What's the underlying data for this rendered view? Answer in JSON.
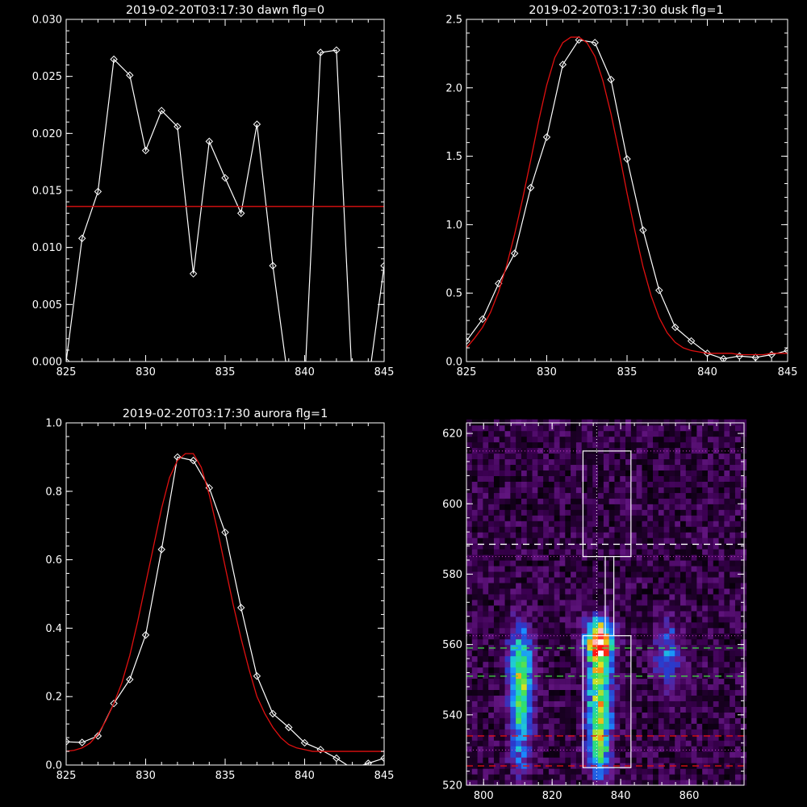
{
  "chart_data": [
    {
      "type": "line",
      "title": "2019-02-20T03:17:30 dawn flg=0",
      "xlim": [
        825,
        845
      ],
      "ylim": [
        0,
        0.03
      ],
      "x_ticks": [
        825,
        830,
        835,
        840,
        845
      ],
      "y_ticks": [
        0.0,
        0.005,
        0.01,
        0.015,
        0.02,
        0.025,
        0.03
      ],
      "x_tick_labels": [
        "825",
        "830",
        "835",
        "840",
        "845"
      ],
      "y_tick_labels": [
        "0.000",
        "0.005",
        "0.010",
        "0.015",
        "0.020",
        "0.025",
        "0.030"
      ],
      "series": [
        {
          "style": "white-line-diamonds",
          "color": "#ffffff",
          "x": [
            825,
            826,
            827,
            828,
            829,
            830,
            831,
            832,
            833,
            834,
            835,
            836,
            837,
            838,
            839,
            840,
            841,
            842,
            843,
            844,
            845
          ],
          "y": [
            0.0,
            0.0108,
            0.0149,
            0.0265,
            0.0251,
            0.0185,
            0.022,
            0.0206,
            0.0077,
            0.0193,
            0.0161,
            0.013,
            0.0208,
            0.0084,
            -0.002,
            -0.002,
            0.0271,
            0.0273,
            -0.002,
            -0.002,
            0.0084
          ]
        },
        {
          "style": "red-fit",
          "color": "#e01010",
          "x": [
            825,
            845
          ],
          "y": [
            0.0136,
            0.0136
          ]
        }
      ]
    },
    {
      "type": "line",
      "title": "2019-02-20T03:17:30 dusk flg=1",
      "xlim": [
        825,
        845
      ],
      "ylim": [
        0,
        2.5
      ],
      "x_ticks": [
        825,
        830,
        835,
        840,
        845
      ],
      "y_ticks": [
        0.0,
        0.5,
        1.0,
        1.5,
        2.0,
        2.5
      ],
      "x_tick_labels": [
        "825",
        "830",
        "835",
        "840",
        "845"
      ],
      "y_tick_labels": [
        "0.0",
        "0.5",
        "1.0",
        "1.5",
        "2.0",
        "2.5"
      ],
      "series": [
        {
          "style": "white-line-diamonds",
          "color": "#ffffff",
          "x": [
            825,
            826,
            827,
            828,
            829,
            830,
            831,
            832,
            833,
            834,
            835,
            836,
            837,
            838,
            839,
            840,
            841,
            842,
            843,
            844,
            845
          ],
          "y": [
            0.15,
            0.31,
            0.57,
            0.79,
            1.27,
            1.64,
            2.17,
            2.35,
            2.33,
            2.06,
            1.48,
            0.96,
            0.52,
            0.25,
            0.15,
            0.06,
            0.02,
            0.04,
            0.03,
            0.05,
            0.08
          ]
        },
        {
          "style": "red-fit",
          "color": "#e01010",
          "x": [
            825,
            825.5,
            826,
            826.5,
            827,
            827.5,
            828,
            828.5,
            829,
            829.5,
            830,
            830.5,
            831,
            831.5,
            832,
            832.5,
            833,
            833.5,
            834,
            834.5,
            835,
            835.5,
            836,
            836.5,
            837,
            837.5,
            838,
            838.5,
            839,
            839.5,
            840,
            840.5,
            841,
            841.5,
            842,
            842.5,
            843,
            843.5,
            844,
            844.5,
            845
          ],
          "y": [
            0.1,
            0.17,
            0.25,
            0.36,
            0.51,
            0.7,
            0.93,
            1.19,
            1.47,
            1.76,
            2.02,
            2.22,
            2.33,
            2.37,
            2.37,
            2.33,
            2.23,
            2.05,
            1.81,
            1.53,
            1.23,
            0.95,
            0.69,
            0.48,
            0.32,
            0.21,
            0.14,
            0.1,
            0.08,
            0.07,
            0.06,
            0.06,
            0.06,
            0.06,
            0.05,
            0.05,
            0.05,
            0.05,
            0.06,
            0.06,
            0.06
          ]
        }
      ]
    },
    {
      "type": "line",
      "title": "2019-02-20T03:17:30 aurora flg=1",
      "xlim": [
        825,
        845
      ],
      "ylim": [
        0,
        1.0
      ],
      "x_ticks": [
        825,
        830,
        835,
        840,
        845
      ],
      "y_ticks": [
        0.0,
        0.2,
        0.4,
        0.6,
        0.8,
        1.0
      ],
      "x_tick_labels": [
        "825",
        "830",
        "835",
        "840",
        "845"
      ],
      "y_tick_labels": [
        "0.0",
        "0.2",
        "0.4",
        "0.6",
        "0.8",
        "1.0"
      ],
      "series": [
        {
          "style": "white-line-diamonds",
          "color": "#ffffff",
          "x": [
            825,
            826,
            827,
            828,
            829,
            830,
            831,
            832,
            833,
            834,
            835,
            836,
            837,
            838,
            839,
            840,
            841,
            842,
            843,
            844,
            845
          ],
          "y": [
            0.068,
            0.066,
            0.085,
            0.18,
            0.25,
            0.38,
            0.63,
            0.9,
            0.89,
            0.81,
            0.68,
            0.46,
            0.26,
            0.15,
            0.11,
            0.065,
            0.045,
            0.02,
            -0.01,
            0.005,
            0.02
          ]
        },
        {
          "style": "red-fit",
          "color": "#e01010",
          "x": [
            825,
            825.5,
            826,
            826.5,
            827,
            827.5,
            828,
            828.5,
            829,
            829.5,
            830,
            830.5,
            831,
            831.5,
            832,
            832.5,
            833,
            833.5,
            834,
            834.5,
            835,
            835.5,
            836,
            836.5,
            837,
            837.5,
            838,
            838.5,
            839,
            839.5,
            840,
            840.5,
            841,
            841.5,
            842,
            842.5,
            843,
            843.5,
            844,
            844.5,
            845
          ],
          "y": [
            0.04,
            0.043,
            0.05,
            0.064,
            0.09,
            0.13,
            0.18,
            0.24,
            0.32,
            0.42,
            0.53,
            0.64,
            0.75,
            0.84,
            0.89,
            0.91,
            0.91,
            0.87,
            0.79,
            0.69,
            0.58,
            0.47,
            0.37,
            0.28,
            0.2,
            0.15,
            0.11,
            0.08,
            0.06,
            0.05,
            0.045,
            0.04,
            0.04,
            0.04,
            0.04,
            0.04,
            0.04,
            0.04,
            0.04,
            0.04,
            0.04
          ]
        }
      ]
    },
    {
      "type": "heatmap",
      "title": "",
      "xlim": [
        795,
        876
      ],
      "ylim": [
        520,
        623
      ],
      "x_ticks": [
        800,
        820,
        840,
        860
      ],
      "y_ticks": [
        520,
        540,
        560,
        580,
        600,
        620
      ],
      "x_tick_labels": [
        "800",
        "820",
        "840",
        "860"
      ],
      "y_tick_labels": [
        "520",
        "540",
        "560",
        "580",
        "600",
        "620"
      ],
      "grid": false,
      "blobs": [
        {
          "x": 810,
          "y": 553,
          "sx": 2.4,
          "sy": 8,
          "amp": 0.55
        },
        {
          "x": 810,
          "y": 536,
          "sx": 2.2,
          "sy": 9,
          "amp": 0.4
        },
        {
          "x": 833,
          "y": 560,
          "sx": 2.6,
          "sy": 4,
          "amp": 1.0
        },
        {
          "x": 833,
          "y": 545,
          "sx": 2.6,
          "sy": 10,
          "amp": 0.6
        },
        {
          "x": 833,
          "y": 530,
          "sx": 2.0,
          "sy": 6,
          "amp": 0.45
        },
        {
          "x": 853,
          "y": 556,
          "sx": 2.5,
          "sy": 7,
          "amp": 0.3
        }
      ],
      "background_level": 0.12,
      "colormap": [
        "#000000",
        "#3a0050",
        "#6a1a8a",
        "#2a3acc",
        "#1a8cff",
        "#20d0d0",
        "#30e060",
        "#e0e020",
        "#ff7010",
        "#ff1010",
        "#ffffff"
      ],
      "overlays": {
        "signal_box": {
          "x": [
            829,
            843
          ],
          "y": [
            525,
            562.5
          ]
        },
        "background_box": {
          "x": [
            829,
            843
          ],
          "y": [
            585,
            615
          ]
        },
        "connector_x": [
          835.5,
          838
        ],
        "center_line_x": 833,
        "magenta_dotted_y": [
          615,
          585,
          562.5,
          530
        ],
        "white_dashed_y": 588.5,
        "green_dashed_y": [
          559,
          551
        ],
        "red_dashed_y": [
          534,
          525.5
        ],
        "colors": {
          "white": "#ffffff",
          "green": "#40e040",
          "red": "#e01010",
          "magenta": "#d040d0",
          "axis": "#ffffff"
        }
      }
    }
  ]
}
